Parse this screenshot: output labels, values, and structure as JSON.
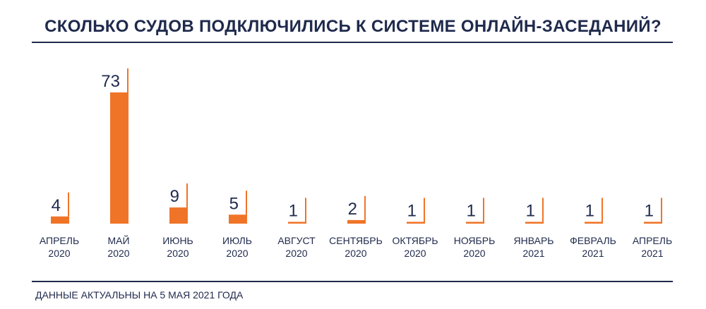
{
  "chart_data": {
    "type": "bar",
    "title": "СКОЛЬКО СУДОВ ПОДКЛЮЧИЛИСЬ К СИСТЕМЕ ОНЛАЙН-ЗАСЕДАНИЙ?",
    "categories": [
      [
        "АПРЕЛЬ",
        "2020"
      ],
      [
        "МАЙ",
        "2020"
      ],
      [
        "ИЮНЬ",
        "2020"
      ],
      [
        "ИЮЛЬ",
        "2020"
      ],
      [
        "АВГУСТ",
        "2020"
      ],
      [
        "СЕНТЯБРЬ",
        "2020"
      ],
      [
        "ОКТЯБРЬ",
        "2020"
      ],
      [
        "НОЯБРЬ",
        "2020"
      ],
      [
        "ЯНВАРЬ",
        "2021"
      ],
      [
        "ФЕВРАЛЬ",
        "2021"
      ],
      [
        "АПРЕЛЬ",
        "2021"
      ]
    ],
    "values": [
      4,
      73,
      9,
      5,
      1,
      2,
      1,
      1,
      1,
      1,
      1
    ],
    "xlabel": "",
    "ylabel": "",
    "ylim": [
      0,
      73
    ],
    "grid": false,
    "data_labels": true,
    "note": "ДАННЫЕ АКТУАЛЬНЫ НА 5 МАЯ 2021 ГОДА"
  },
  "colors": {
    "bar": "#f07428",
    "text": "#1f2a4c",
    "rule": "#1f2a4c"
  }
}
